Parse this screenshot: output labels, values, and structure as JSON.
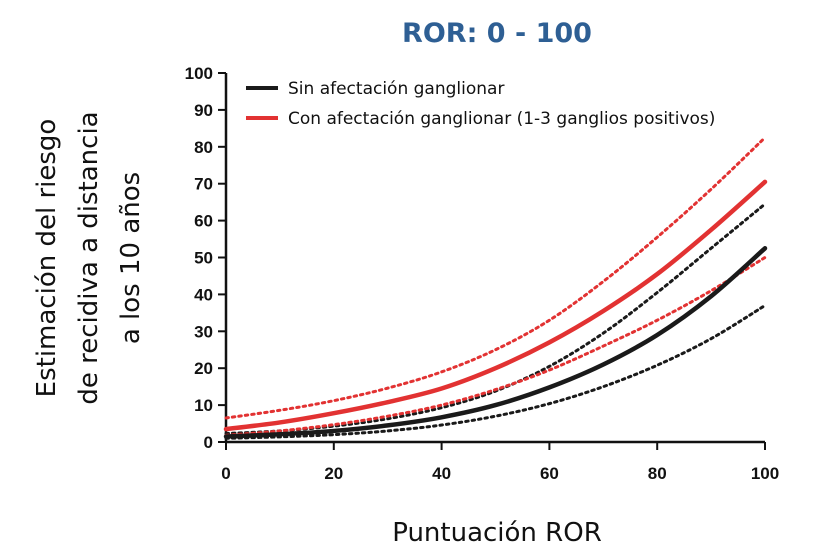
{
  "chart_data": {
    "type": "line",
    "title": "ROR: 0 - 100",
    "xlabel": "Puntuación ROR",
    "ylabel_lines": [
      "Estimación del riesgo",
      "de recidiva a distancia",
      "a los 10 años"
    ],
    "xlim": [
      0,
      100
    ],
    "ylim": [
      0,
      100
    ],
    "x_ticks": [
      0,
      20,
      40,
      60,
      80,
      100
    ],
    "y_ticks": [
      0,
      10,
      20,
      30,
      40,
      50,
      60,
      70,
      80,
      90,
      100
    ],
    "grid": false,
    "legend_position": "top-left",
    "title_color": "#2e5f94",
    "x": [
      0,
      10,
      20,
      30,
      40,
      50,
      60,
      70,
      80,
      90,
      100
    ],
    "series": [
      {
        "name": "Sin afectación ganglionar",
        "color": "#1a1a1a",
        "values": [
          1.5,
          2.1,
          3.0,
          4.5,
          6.7,
          10.0,
          14.8,
          21.0,
          29.0,
          39.5,
          52.5
        ],
        "ci_lower": [
          1.0,
          1.4,
          2.0,
          3.0,
          4.6,
          7.0,
          10.4,
          15.0,
          20.8,
          28.0,
          37.0
        ],
        "ci_upper": [
          2.3,
          3.0,
          4.3,
          6.3,
          9.3,
          13.8,
          20.5,
          29.5,
          40.5,
          52.5,
          64.5
        ]
      },
      {
        "name": "Con afectación ganglionar (1-3 ganglios positivos)",
        "color": "#e23232",
        "values": [
          3.5,
          5.3,
          7.8,
          10.8,
          14.5,
          20.0,
          27.0,
          35.5,
          45.5,
          57.5,
          70.5
        ],
        "ci_lower": [
          1.8,
          3.0,
          4.7,
          7.0,
          10.0,
          14.2,
          19.5,
          26.0,
          33.0,
          41.0,
          50.0
        ],
        "ci_upper": [
          6.5,
          8.6,
          11.2,
          14.6,
          19.0,
          25.0,
          33.0,
          43.5,
          55.5,
          68.5,
          82.5
        ]
      }
    ]
  }
}
